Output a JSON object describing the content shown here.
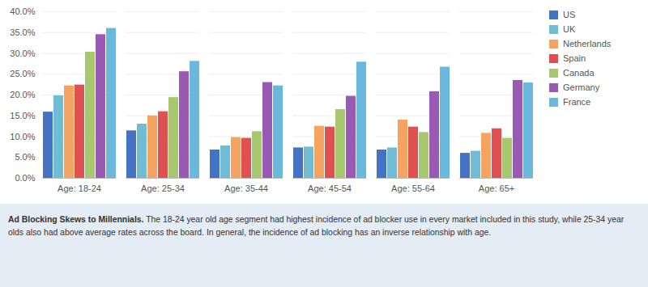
{
  "chart_data": {
    "type": "bar",
    "categories": [
      "Age: 18-24",
      "Age: 25-34",
      "Age: 35-44",
      "Age: 45-54",
      "Age: 55-64",
      "Age: 65+"
    ],
    "series": [
      {
        "name": "US",
        "color": "#4472C4",
        "values": [
          0.159,
          0.114,
          0.068,
          0.073,
          0.068,
          0.06
        ]
      },
      {
        "name": "UK",
        "color": "#70BCD4",
        "values": [
          0.198,
          0.13,
          0.078,
          0.075,
          0.073,
          0.065
        ]
      },
      {
        "name": "Netherlands",
        "color": "#F4A460",
        "values": [
          0.222,
          0.15,
          0.098,
          0.125,
          0.14,
          0.108
        ]
      },
      {
        "name": "Spain",
        "color": "#E05050",
        "values": [
          0.224,
          0.16,
          0.096,
          0.123,
          0.123,
          0.119
        ]
      },
      {
        "name": "Canada",
        "color": "#A8C870",
        "values": [
          0.303,
          0.194,
          0.112,
          0.165,
          0.11,
          0.096
        ]
      },
      {
        "name": "Germany",
        "color": "#9B59B6",
        "values": [
          0.345,
          0.256,
          0.23,
          0.197,
          0.208,
          0.235
        ]
      },
      {
        "name": "France",
        "color": "#6AB8DC",
        "values": [
          0.36,
          0.281,
          0.222,
          0.279,
          0.267,
          0.229
        ]
      }
    ],
    "ylim": [
      0.0,
      0.4
    ],
    "yticks": [
      {
        "value": 0.0,
        "label": "0.0%"
      },
      {
        "value": 0.05,
        "label": "5.0%"
      },
      {
        "value": 0.1,
        "label": "10.0%"
      },
      {
        "value": 0.15,
        "label": "15.0%"
      },
      {
        "value": 0.2,
        "label": "20.0%"
      },
      {
        "value": 0.25,
        "label": "25.0%"
      },
      {
        "value": 0.3,
        "label": "30.0%"
      },
      {
        "value": 0.35,
        "label": "35.0%"
      },
      {
        "value": 0.4,
        "label": "40.0%"
      }
    ],
    "grid": true,
    "legend": "right",
    "caption": [
      {
        "text": "Ad Blocking Skews to Millennials.",
        "bold": true
      },
      {
        "text": " The 18-24 year old age segment had highest incidence of ad blocker use in every market included in this study, while 25-34 year olds also had above average rates across the board. In general, the incidence of ad blocking has an inverse relationship with age."
      }
    ]
  }
}
